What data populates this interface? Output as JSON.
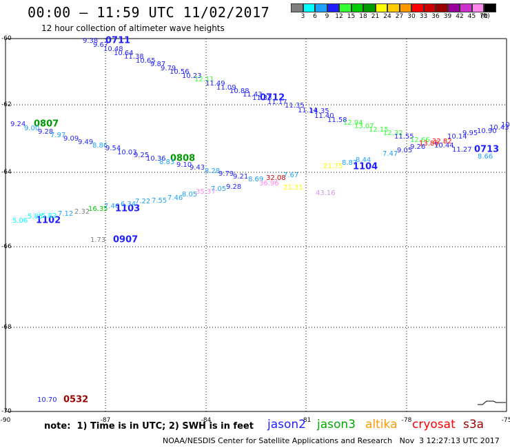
{
  "header": {
    "title": "00:00 – 11:59 UTC 11/02/2017",
    "subtitle": "12 hour collection of altimeter wave heights"
  },
  "legend": {
    "unit": "(ft)",
    "colors": [
      "#7f7f7f",
      "#00ffff",
      "#1fa2ff",
      "#1f1fff",
      "#33ff33",
      "#00cc00",
      "#009900",
      "#ffff00",
      "#ffcc00",
      "#ff9900",
      "#ff0000",
      "#cc0000",
      "#990000",
      "#990099",
      "#cc33cc",
      "#ff88ee",
      "#000000"
    ],
    "labels": [
      "3",
      "6",
      "9",
      "12",
      "15",
      "18",
      "21",
      "24",
      "27",
      "30",
      "33",
      "36",
      "39",
      "42",
      "45",
      "70"
    ]
  },
  "axes": {
    "lat_labels": [
      "-60",
      "-62",
      "-64",
      "-66",
      "-68",
      "-70"
    ],
    "lon_labels": [
      "-90",
      "-87",
      "-84",
      "-81",
      "-78",
      "-75"
    ]
  },
  "points": [
    {
      "t": "9.38",
      "c": "#1f1fff"
    },
    {
      "t": "0711",
      "c": "#1f1fff",
      "b": 1
    },
    {
      "t": "9.67",
      "c": "#1f1fff"
    },
    {
      "t": "10.48",
      "c": "#1f1fff"
    },
    {
      "t": "10.64",
      "c": "#1f1fff"
    },
    {
      "t": "11.38",
      "c": "#1f1fff"
    },
    {
      "t": "10.65",
      "c": "#1f1fff"
    },
    {
      "t": "9.87",
      "c": "#1f1fff"
    },
    {
      "t": "9.79",
      "c": "#1f1fff"
    },
    {
      "t": "10.56",
      "c": "#1f1fff"
    },
    {
      "t": "10.23",
      "c": "#1f1fff"
    },
    {
      "t": "12.11",
      "c": "#33ff33"
    },
    {
      "t": "11.49",
      "c": "#1f1fff"
    },
    {
      "t": "11.09",
      "c": "#1f1fff"
    },
    {
      "t": "10.88",
      "c": "#1f1fff"
    },
    {
      "t": "11.43",
      "c": "#1f1fff"
    },
    {
      "t": "11.33",
      "c": "#1f1fff"
    },
    {
      "t": "0712",
      "c": "#1f1fff",
      "b": 1
    },
    {
      "t": "11.17",
      "c": "#1f1fff"
    },
    {
      "t": "11.35",
      "c": "#1f1fff"
    },
    {
      "t": "11.14",
      "c": "#1f1fff"
    },
    {
      "t": "14.35",
      "c": "#1f1fff"
    },
    {
      "t": "11.40",
      "c": "#1f1fff"
    },
    {
      "t": "11.58",
      "c": "#1f1fff"
    },
    {
      "t": "12.94",
      "c": "#33ff33"
    },
    {
      "t": "13.07",
      "c": "#33ff33"
    },
    {
      "t": "12.15",
      "c": "#33ff33"
    },
    {
      "t": "12.32",
      "c": "#33ff33"
    },
    {
      "t": "11.55",
      "c": "#1f1fff"
    },
    {
      "t": "12.66",
      "c": "#33ff33"
    },
    {
      "t": "13.86",
      "c": "#ff0000"
    },
    {
      "t": "32.82",
      "c": "#ff0000"
    },
    {
      "t": "10.14",
      "c": "#1f1fff"
    },
    {
      "t": "9.95",
      "c": "#1f1fff"
    },
    {
      "t": "10.90",
      "c": "#1f1fff"
    },
    {
      "t": "10.43",
      "c": "#1f1fff"
    },
    {
      "t": "10",
      "c": "#1f1fff"
    },
    {
      "t": "0713",
      "c": "#1f1fff",
      "b": 1
    },
    {
      "t": "11.27",
      "c": "#1f1fff"
    },
    {
      "t": "10.44",
      "c": "#1f1fff"
    },
    {
      "t": "9.26",
      "c": "#1f1fff"
    },
    {
      "t": "9.05",
      "c": "#1f1fff"
    },
    {
      "t": "8.66",
      "c": "#1fa2ff"
    },
    {
      "t": "7.47",
      "c": "#1fa2ff"
    },
    {
      "t": "9.24",
      "c": "#1f1fff"
    },
    {
      "t": "0807",
      "c": "#009900",
      "b": 1
    },
    {
      "t": "9.00",
      "c": "#1fa2ff"
    },
    {
      "t": "9.28",
      "c": "#1f1fff"
    },
    {
      "t": "7.97",
      "c": "#1fa2ff"
    },
    {
      "t": "9.09",
      "c": "#1f1fff"
    },
    {
      "t": "9.49",
      "c": "#1f1fff"
    },
    {
      "t": "8.86",
      "c": "#1fa2ff"
    },
    {
      "t": "9.54",
      "c": "#1f1fff"
    },
    {
      "t": "10.03",
      "c": "#1f1fff"
    },
    {
      "t": "9.25",
      "c": "#1f1fff"
    },
    {
      "t": "10.36",
      "c": "#1f1fff"
    },
    {
      "t": "0808",
      "c": "#009900",
      "b": 1
    },
    {
      "t": "8.83",
      "c": "#1fa2ff"
    },
    {
      "t": "9.10",
      "c": "#1f1fff"
    },
    {
      "t": "9.43",
      "c": "#1f1fff"
    },
    {
      "t": "8.28",
      "c": "#1fa2ff"
    },
    {
      "t": "9.79",
      "c": "#1f1fff"
    },
    {
      "t": "9.21",
      "c": "#1f1fff"
    },
    {
      "t": "8.69",
      "c": "#1fa2ff"
    },
    {
      "t": "36.96",
      "c": "#ff88ee"
    },
    {
      "t": "32.08",
      "c": "#cc0000"
    },
    {
      "t": "7.67",
      "c": "#1fa2ff"
    },
    {
      "t": "21.75",
      "c": "#ffff00"
    },
    {
      "t": "8.87",
      "c": "#1fa2ff"
    },
    {
      "t": "1104",
      "c": "#1f1fff",
      "b": 1
    },
    {
      "t": "8.44",
      "c": "#1fa2ff"
    },
    {
      "t": "5.06",
      "c": "#00ffff"
    },
    {
      "t": "1102",
      "c": "#1f1fff",
      "b": 1
    },
    {
      "t": "5.85",
      "c": "#00ffff"
    },
    {
      "t": "5.82",
      "c": "#00ffff"
    },
    {
      "t": "7.12",
      "c": "#1fa2ff"
    },
    {
      "t": "2.32",
      "c": "#7f7f7f"
    },
    {
      "t": "16.35",
      "c": "#00cc00"
    },
    {
      "t": "7.46",
      "c": "#1fa2ff"
    },
    {
      "t": "1103",
      "c": "#1f1fff",
      "b": 1
    },
    {
      "t": "6.34",
      "c": "#1fa2ff"
    },
    {
      "t": "7.22",
      "c": "#1fa2ff"
    },
    {
      "t": "7.55",
      "c": "#1fa2ff"
    },
    {
      "t": "7.46",
      "c": "#1fa2ff"
    },
    {
      "t": "8.05",
      "c": "#1fa2ff"
    },
    {
      "t": "35.37",
      "c": "#ff88ee"
    },
    {
      "t": "7.05",
      "c": "#1fa2ff"
    },
    {
      "t": "9.28",
      "c": "#1f1fff"
    },
    {
      "t": "21.31",
      "c": "#ffff00"
    },
    {
      "t": "43.16",
      "c": "#cc99ee"
    },
    {
      "t": "1.73",
      "c": "#7f7f7f"
    },
    {
      "t": "0907",
      "c": "#1f1fff",
      "b": 1
    },
    {
      "t": "10.70",
      "c": "#1f1fff"
    },
    {
      "t": "0532",
      "c": "#990000",
      "b": 1
    }
  ],
  "note": "note:  1) Time is in UTC; 2) SWH is in feet",
  "satellites": [
    {
      "name": "jason2",
      "color": "#1f1fff"
    },
    {
      "name": "jason3",
      "color": "#00aa00"
    },
    {
      "name": "altika",
      "color": "#ff9900"
    },
    {
      "name": "cryosat",
      "color": "#ff0000"
    },
    {
      "name": "s3a",
      "color": "#990000"
    }
  ],
  "footer": "NOAA/NESDIS Center for Satellite Applications and Research   Nov  3 12:27:13 UTC 2017"
}
